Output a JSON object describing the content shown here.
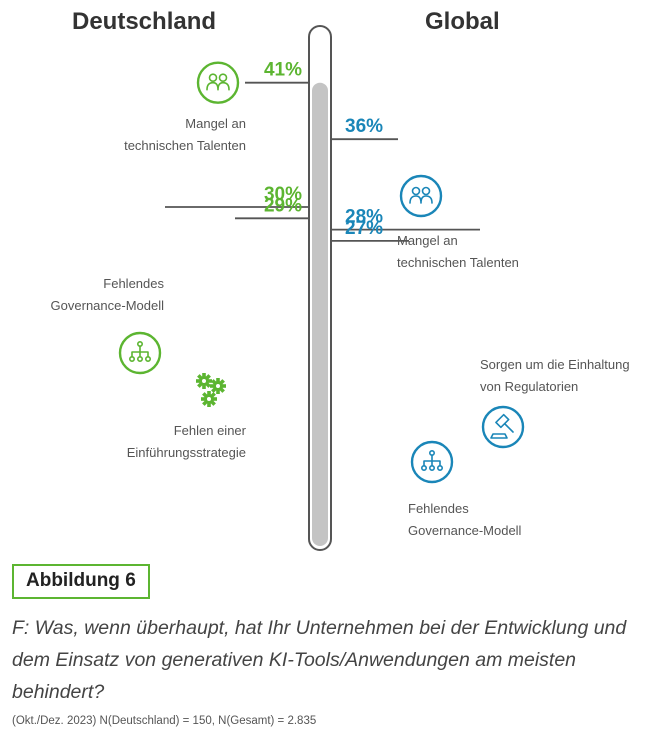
{
  "chart_data": [
    {
      "type": "bar",
      "title": "Deutschland",
      "accent_color": "#5cb531",
      "categories": [
        "Mangel an technischen Talenten",
        "Fehlendes Governance-Modell",
        "Fehlen einer Einführungsstrategie"
      ],
      "values": [
        41,
        30,
        29
      ],
      "value_labels": [
        "41%",
        "30%",
        "29%"
      ],
      "icons": [
        "people-icon",
        "hierarchy-icon",
        "gears-icon"
      ],
      "label_lines": [
        [
          "Mangel an",
          "technischen Talenten"
        ],
        [
          "Fehlendes",
          "Governance-Modell"
        ],
        [
          "Fehlen einer",
          "Einführungsstrategie"
        ]
      ]
    },
    {
      "type": "bar",
      "title": "Global",
      "accent_color": "#1a86b8",
      "categories": [
        "Mangel an technischen Talenten",
        "Sorgen um die Einhaltung von Regulatorien",
        "Fehlendes Governance-Modell"
      ],
      "values": [
        36,
        28,
        27
      ],
      "value_labels": [
        "36%",
        "28%",
        "27%"
      ],
      "icons": [
        "people-icon",
        "gavel-icon",
        "hierarchy-icon"
      ],
      "label_lines": [
        [
          "Mangel an",
          "technischen Talenten"
        ],
        [
          "Sorgen um die Einhaltung",
          "von Regulatorien"
        ],
        [
          "Fehlendes",
          "Governance-Modell"
        ]
      ]
    }
  ],
  "figure": {
    "label": "Abbildung 6",
    "question": "F: Was, wenn überhaupt, hat Ihr Unternehmen bei der Entwicklung und dem Einsatz von generativen KI-Tools/Anwendungen am meisten behindert?",
    "footnote": "(Okt./Dez. 2023) N(Deutschland) = 150, N(Gesamt) = 2.835"
  },
  "colors": {
    "green": "#5cb531",
    "blue": "#1a86b8",
    "thermometer_fill": "#c4c4c4",
    "thermometer_outline": "#555555",
    "connector": "#555555",
    "text": "#555555"
  }
}
